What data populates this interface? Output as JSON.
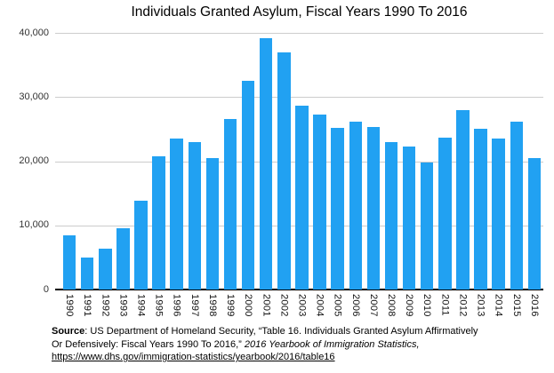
{
  "colors": {
    "bar": "#21a1f2",
    "gridline": "#cccccc",
    "axis": "#000000",
    "text": "#000000"
  },
  "chart_data": {
    "type": "bar",
    "title": "Individuals Granted Asylum, Fiscal Years 1990 To 2016",
    "xlabel": "",
    "ylabel": "",
    "categories": [
      "1990",
      "1991",
      "1992",
      "1993",
      "1994",
      "1995",
      "1996",
      "1997",
      "1998",
      "1999",
      "2000",
      "2001",
      "2002",
      "2003",
      "2004",
      "2005",
      "2006",
      "2007",
      "2008",
      "2009",
      "2010",
      "2011",
      "2012",
      "2013",
      "2014",
      "2015",
      "2016"
    ],
    "values": [
      8472,
      5035,
      6310,
      9584,
      13798,
      20716,
      23533,
      22939,
      20507,
      26578,
      32496,
      39146,
      36894,
      28661,
      27321,
      25257,
      26113,
      25270,
      22930,
      22219,
      19766,
      23606,
      27990,
      25034,
      23533,
      26124,
      20455
    ],
    "ylim": [
      0,
      40000
    ],
    "yticks": [
      0,
      10000,
      20000,
      30000,
      40000
    ],
    "ytick_labels": [
      "0",
      "10,000",
      "20,000",
      "30,000",
      "40,000"
    ],
    "grid": true,
    "legend": false,
    "bar_color": "#21a1f2"
  },
  "footer": {
    "source_label": "Source",
    "line1_rest": ": US Department of Homeland Security, “Table 16. Individuals Granted Asylum Affirmatively",
    "line2_normal": "Or Defensively: Fiscal Years 1990 To 2016,” ",
    "line2_italic": "2016 Yearbook of Immigration Statistics,",
    "link": "https://www.dhs.gov/immigration-statistics/yearbook/2016/table16"
  }
}
